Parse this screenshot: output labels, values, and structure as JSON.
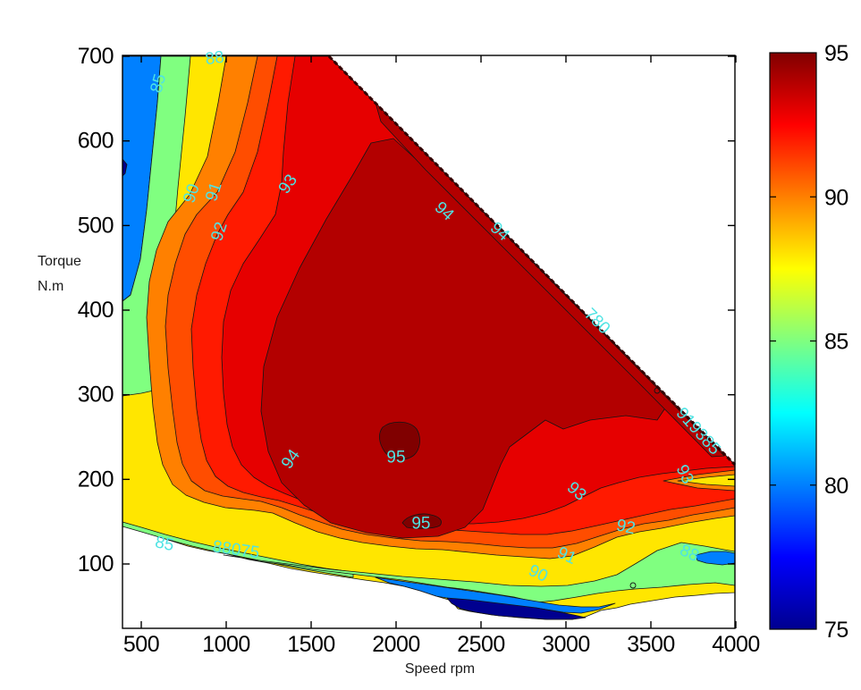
{
  "figure": {
    "background": "#FFFFFF"
  },
  "axes": {
    "xlabel": "Speed rpm",
    "ylabel_line1": "Torque",
    "ylabel_line2": "N.m",
    "x_ticks": [
      500,
      1000,
      1500,
      2000,
      2500,
      3000,
      3500,
      4000
    ],
    "y_ticks": [
      100,
      200,
      300,
      400,
      500,
      600,
      700
    ]
  },
  "chart_data": {
    "type": "contour",
    "title": "",
    "xlabel": "Speed rpm",
    "ylabel": "Torque N.m",
    "x_range_rpm": [
      390,
      4000
    ],
    "y_range_nm": [
      24,
      701
    ],
    "levels": [
      75,
      80,
      85,
      88,
      90,
      91,
      92,
      93,
      94,
      95
    ],
    "colormap": "jet",
    "caxis": [
      75,
      95
    ],
    "grid": false,
    "peak": {
      "value": 95,
      "speed_rpm": 2000,
      "torque_nm": 226
    },
    "operating_envelope": {
      "max_torque_nm": 700,
      "flat_top_until_rpm": 1600,
      "diagonal_end": {
        "rpm": 4000,
        "torque_nm": 217
      },
      "min_speed_rpm": 390
    },
    "band_colors": {
      "b75_80": "#00008F",
      "b80_85": "#0080FF",
      "b85_88": "#80FF80",
      "b88_90": "#FFE600",
      "b90_91": "#FF8000",
      "b91_92": "#FF4D00",
      "b92_93": "#FF1A00",
      "b93_94": "#E60000",
      "b94_95": "#B30000",
      "b95plus": "#800000"
    },
    "contour_label_color": "#4FE3E3",
    "contour_labels": [
      {
        "text": "85",
        "speed": 600,
        "torque": 668,
        "rot": -75
      },
      {
        "text": "88",
        "speed": 932,
        "torque": 698,
        "rot": -8
      },
      {
        "text": "90",
        "speed": 795,
        "torque": 538,
        "rot": -72
      },
      {
        "text": "91",
        "speed": 926,
        "torque": 540,
        "rot": -72
      },
      {
        "text": "92",
        "speed": 958,
        "torque": 493,
        "rot": -72
      },
      {
        "text": "93",
        "speed": 1363,
        "torque": 549,
        "rot": -55
      },
      {
        "text": "94",
        "speed": 2284,
        "torque": 517,
        "rot": 42
      },
      {
        "text": "94",
        "speed": 2611,
        "torque": 493,
        "rot": 42
      },
      {
        "text": "780",
        "speed": 3184,
        "torque": 387,
        "rot": 45
      },
      {
        "text": "919385",
        "speed": 3779,
        "torque": 257,
        "rot": 48
      },
      {
        "text": "93",
        "speed": 3700,
        "torque": 206,
        "rot": 65
      },
      {
        "text": "93",
        "speed": 3063,
        "torque": 186,
        "rot": 42
      },
      {
        "text": "92",
        "speed": 3353,
        "torque": 144,
        "rot": 12
      },
      {
        "text": "91",
        "speed": 3005,
        "torque": 110,
        "rot": 25
      },
      {
        "text": "90",
        "speed": 2837,
        "torque": 89,
        "rot": 25
      },
      {
        "text": "88",
        "speed": 3727,
        "torque": 113,
        "rot": 25
      },
      {
        "text": "85",
        "speed": 637,
        "torque": 124,
        "rot": 12
      },
      {
        "text": "88075",
        "speed": 1058,
        "torque": 117,
        "rot": 8
      },
      {
        "text": "94",
        "speed": 1379,
        "torque": 224,
        "rot": -55
      },
      {
        "text": "95",
        "speed": 2000,
        "torque": 226,
        "rot": 0
      },
      {
        "text": "95",
        "speed": 2147,
        "torque": 148,
        "rot": 0
      }
    ],
    "colorbar": {
      "min": 75,
      "max": 95,
      "tick_labels": [
        95,
        90,
        85,
        80,
        75
      ],
      "gradient_stops": [
        [
          0,
          "#800000"
        ],
        [
          0.125,
          "#FF0000"
        ],
        [
          0.375,
          "#FFFF00"
        ],
        [
          0.625,
          "#00FFFF"
        ],
        [
          0.875,
          "#0000FF"
        ],
        [
          1,
          "#00008F"
        ]
      ]
    }
  }
}
